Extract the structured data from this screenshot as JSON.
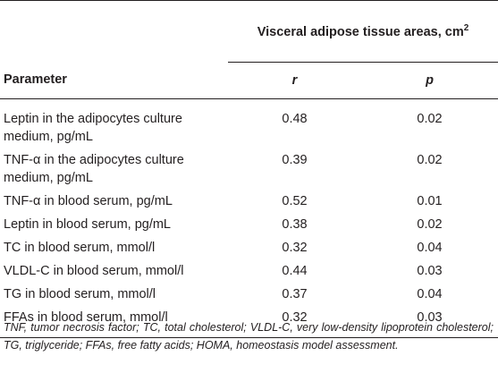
{
  "table": {
    "group_header": "Visceral adipose tissue areas, cm",
    "group_header_sup": "2",
    "col_param": "Parameter",
    "col_r": "r",
    "col_p": "p",
    "rows": [
      {
        "param_line1": "Leptin in the adipocytes culture",
        "param_line2": "medium, pg/mL",
        "r": "0.48",
        "p": "0.02"
      },
      {
        "param_line1": "TNF-α in the adipocytes culture",
        "param_line2": "medium, pg/mL",
        "r": "0.39",
        "p": "0.02"
      },
      {
        "param": "TNF-α in blood serum, pg/mL",
        "r": "0.52",
        "p": "0.01"
      },
      {
        "param": "Leptin in blood serum, pg/mL",
        "r": "0.38",
        "p": "0.02"
      },
      {
        "param": "TC in blood serum, mmol/l",
        "r": "0.32",
        "p": "0.04"
      },
      {
        "param": "VLDL-C in blood serum, mmol/l",
        "r": "0.44",
        "p": "0.03"
      },
      {
        "param": "TG in blood serum, mmol/l",
        "r": "0.37",
        "p": "0.04"
      },
      {
        "param": "FFAs in blood serum, mmol/l",
        "r": "0.32",
        "p": "0.03"
      }
    ]
  },
  "footnote": "TNF, tumor necrosis factor; TC, total cholesterol; VLDL-C, very low-density lipoprotein cholesterol; TG, triglyceride; FFAs, free fatty acids; HOMA, homeostasis model assessment."
}
